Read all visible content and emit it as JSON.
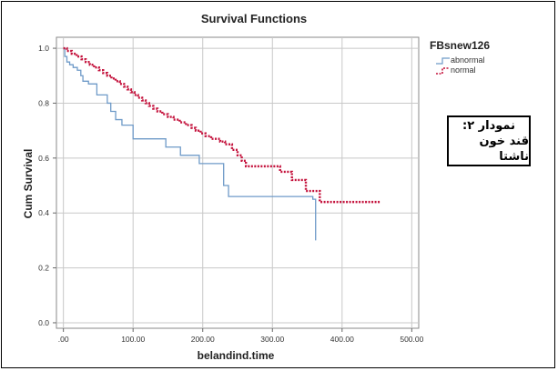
{
  "chart_data": {
    "type": "line",
    "step": true,
    "title": "Survival Functions",
    "xlabel": "belandind.time",
    "ylabel": "Cum Survival",
    "xlim": [
      -10,
      510
    ],
    "ylim": [
      -0.02,
      1.04
    ],
    "x_ticks": [
      ".00",
      "100.00",
      "200.00",
      "300.00",
      "400.00",
      "500.00"
    ],
    "x_tick_values": [
      0,
      100,
      200,
      300,
      400,
      500
    ],
    "y_ticks": [
      "0.0",
      "0.2",
      "0.4",
      "0.6",
      "0.8",
      "1.0"
    ],
    "y_tick_values": [
      0,
      0.2,
      0.4,
      0.6,
      0.8,
      1.0
    ],
    "grid": true,
    "legend_title": "FBsnew126",
    "legend_position": "right",
    "series": [
      {
        "name": "abnormal",
        "color": "#6e9ac8",
        "dash": "solid",
        "points": [
          [
            0,
            1.0
          ],
          [
            2,
            0.97
          ],
          [
            5,
            0.95
          ],
          [
            9,
            0.94
          ],
          [
            14,
            0.93
          ],
          [
            20,
            0.92
          ],
          [
            25,
            0.9
          ],
          [
            28,
            0.88
          ],
          [
            36,
            0.87
          ],
          [
            48,
            0.83
          ],
          [
            63,
            0.8
          ],
          [
            68,
            0.77
          ],
          [
            75,
            0.74
          ],
          [
            84,
            0.72
          ],
          [
            100,
            0.67
          ],
          [
            147,
            0.64
          ],
          [
            168,
            0.61
          ],
          [
            195,
            0.58
          ],
          [
            230,
            0.5
          ],
          [
            237,
            0.46
          ],
          [
            337,
            0.46
          ],
          [
            358,
            0.45
          ],
          [
            362,
            0.3
          ]
        ]
      },
      {
        "name": "normal",
        "color": "#c4123c",
        "dash": "dotted",
        "points": [
          [
            0,
            1.0
          ],
          [
            5,
            0.99
          ],
          [
            12,
            0.98
          ],
          [
            19,
            0.97
          ],
          [
            26,
            0.96
          ],
          [
            32,
            0.95
          ],
          [
            38,
            0.94
          ],
          [
            44,
            0.93
          ],
          [
            51,
            0.92
          ],
          [
            57,
            0.91
          ],
          [
            63,
            0.9
          ],
          [
            69,
            0.89
          ],
          [
            75,
            0.88
          ],
          [
            81,
            0.87
          ],
          [
            87,
            0.86
          ],
          [
            92,
            0.85
          ],
          [
            97,
            0.84
          ],
          [
            102,
            0.83
          ],
          [
            107,
            0.82
          ],
          [
            113,
            0.81
          ],
          [
            118,
            0.8
          ],
          [
            123,
            0.79
          ],
          [
            129,
            0.78
          ],
          [
            135,
            0.77
          ],
          [
            142,
            0.76
          ],
          [
            150,
            0.75
          ],
          [
            158,
            0.74
          ],
          [
            167,
            0.73
          ],
          [
            176,
            0.72
          ],
          [
            184,
            0.71
          ],
          [
            190,
            0.7
          ],
          [
            197,
            0.69
          ],
          [
            204,
            0.68
          ],
          [
            212,
            0.67
          ],
          [
            225,
            0.66
          ],
          [
            232,
            0.65
          ],
          [
            242,
            0.63
          ],
          [
            250,
            0.61
          ],
          [
            256,
            0.59
          ],
          [
            262,
            0.57
          ],
          [
            311,
            0.55
          ],
          [
            328,
            0.52
          ],
          [
            348,
            0.48
          ],
          [
            368,
            0.44
          ],
          [
            455,
            0.44
          ]
        ]
      }
    ]
  },
  "annotation": {
    "line1": "نمودار ۲:",
    "line2": "قند خون ناشتا"
  }
}
